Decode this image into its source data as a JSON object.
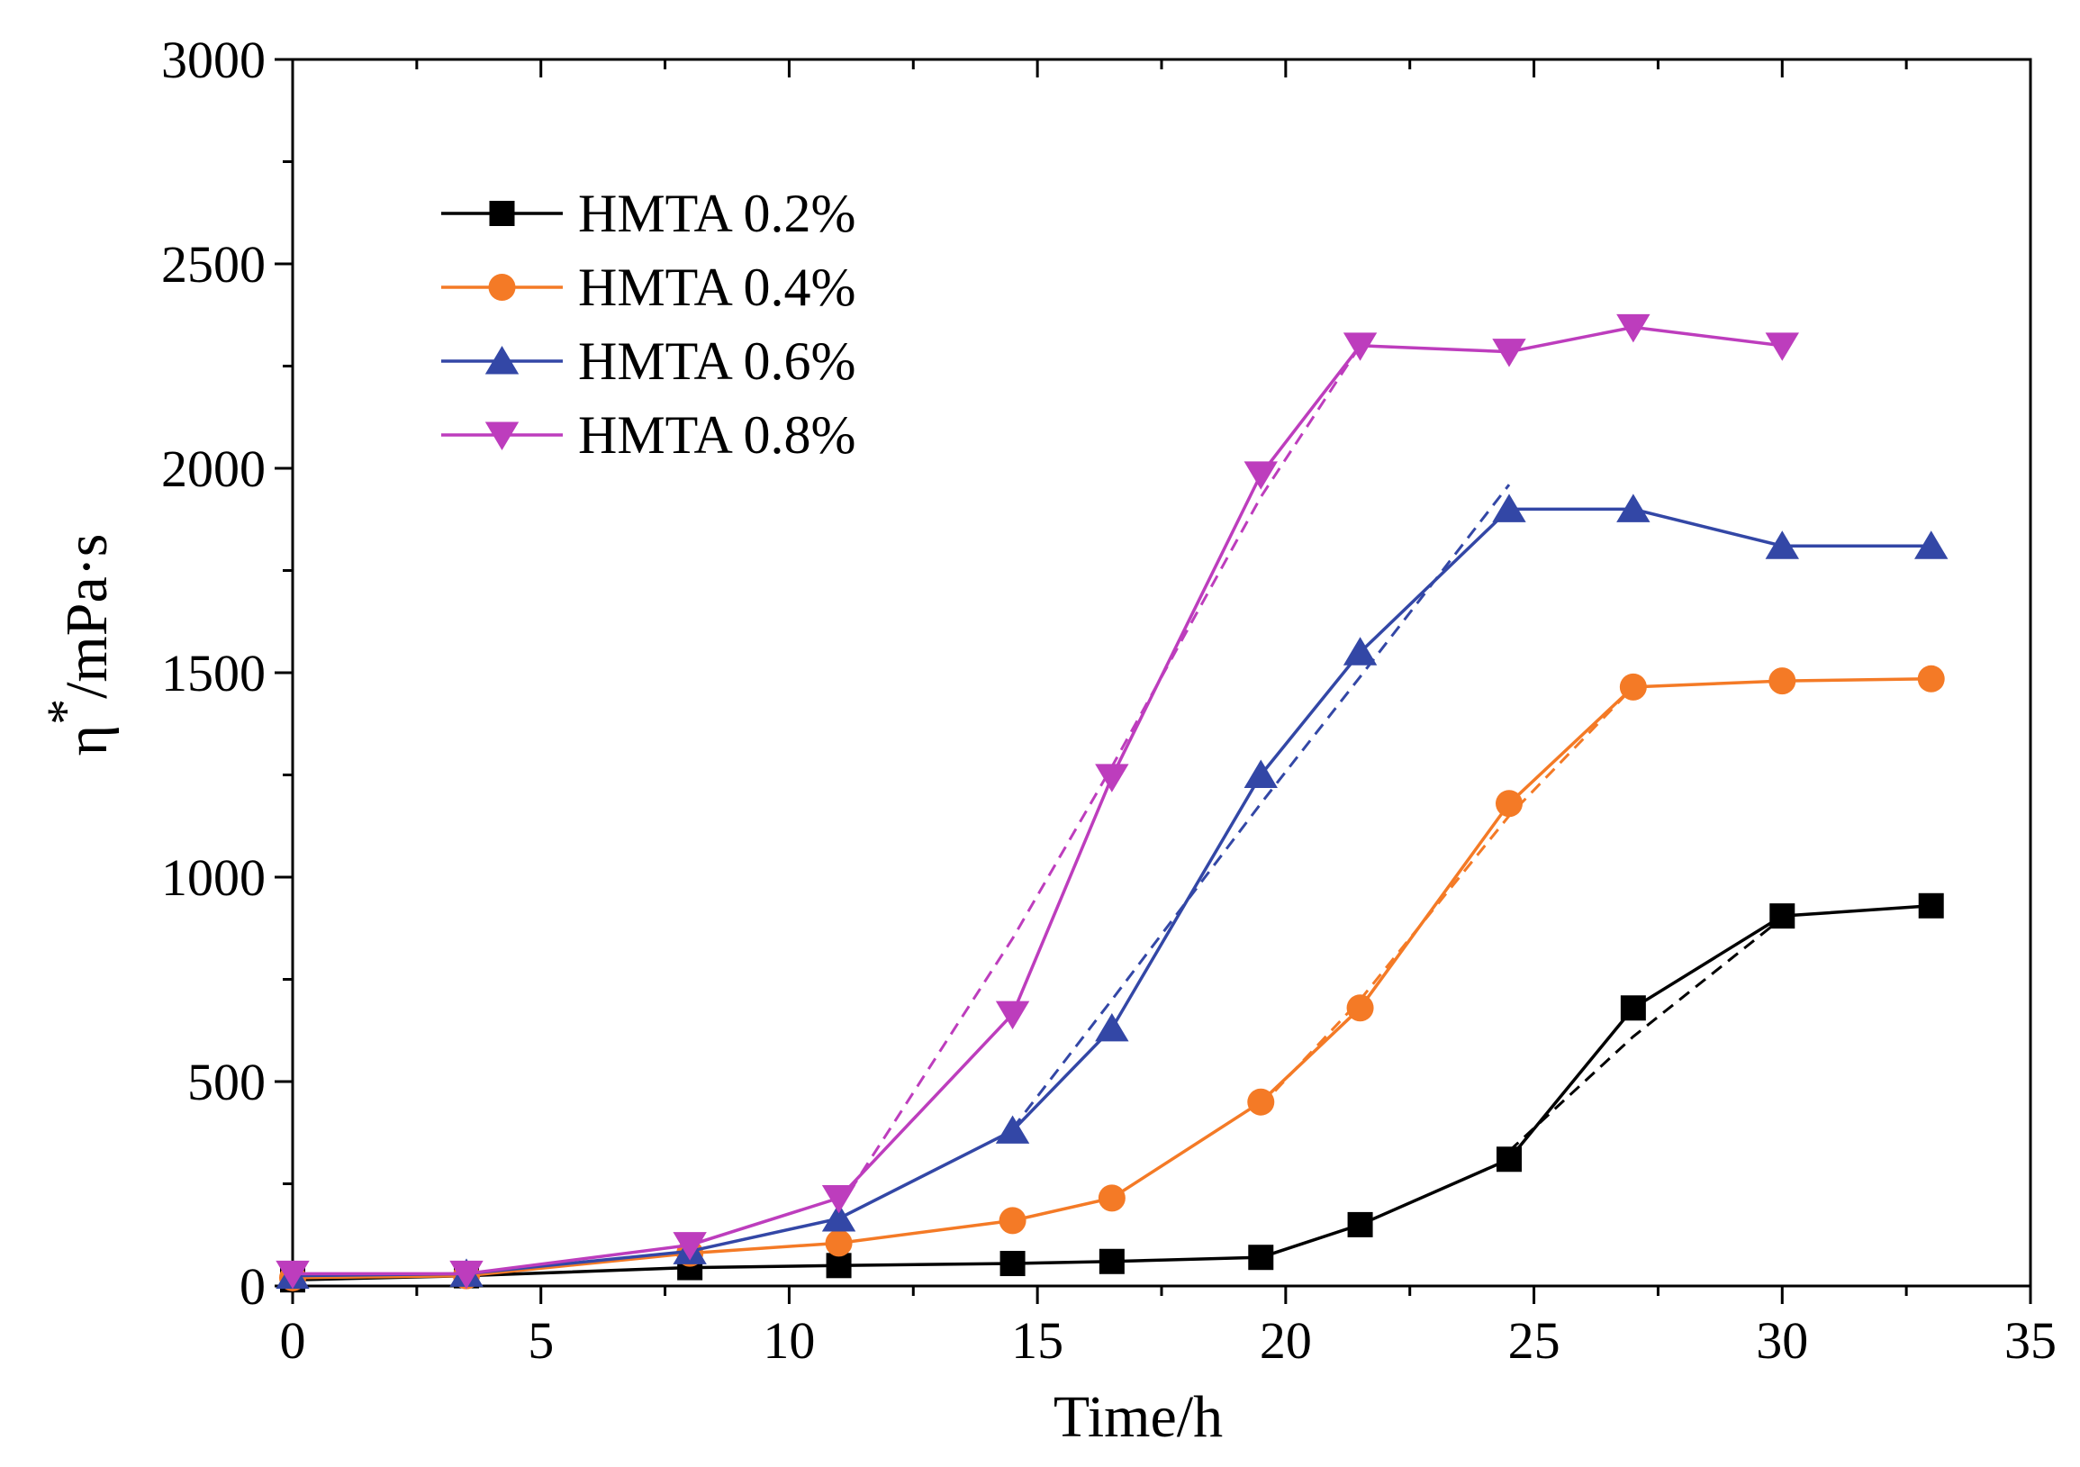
{
  "chart_data": {
    "type": "line",
    "title": "",
    "xlabel": "Time/h",
    "ylabel": "η*/mPa·s",
    "ylabel_parts": {
      "symbol": "η",
      "superscript": "*",
      "unit": "/mPa·s"
    },
    "xlim": [
      0,
      35
    ],
    "ylim": [
      0,
      3000
    ],
    "xticks": [
      0,
      5,
      10,
      15,
      20,
      25,
      30,
      35
    ],
    "yticks": [
      0,
      500,
      1000,
      1500,
      2000,
      2500,
      3000
    ],
    "grid": false,
    "legend_position": "top-left",
    "series": [
      {
        "name": "HMTA 0.2%",
        "color": "#000000",
        "marker": "square",
        "x": [
          0,
          3.5,
          8,
          11,
          14.5,
          16.5,
          19.5,
          21.5,
          24.5,
          27,
          30,
          33
        ],
        "y": [
          15,
          25,
          45,
          50,
          55,
          60,
          70,
          150,
          310,
          680,
          905,
          930
        ],
        "fit": {
          "x": [
            24.5,
            27,
            30
          ],
          "y": [
            330,
            610,
            900
          ]
        }
      },
      {
        "name": "HMTA 0.4%",
        "color": "#F47A26",
        "marker": "circle",
        "x": [
          0,
          3.5,
          8,
          11,
          14.5,
          16.5,
          19.5,
          21.5,
          24.5,
          27,
          30,
          33
        ],
        "y": [
          20,
          25,
          80,
          105,
          160,
          215,
          450,
          680,
          1180,
          1465,
          1480,
          1485
        ],
        "fit": {
          "x": [
            19.5,
            21.5,
            24.5,
            27
          ],
          "y": [
            440,
            700,
            1150,
            1465
          ]
        }
      },
      {
        "name": "HMTA 0.6%",
        "color": "#3347A6",
        "marker": "triangle-up",
        "x": [
          0,
          3.5,
          8,
          11,
          14.5,
          16.5,
          19.5,
          21.5,
          24.5,
          27,
          30,
          33
        ],
        "y": [
          25,
          30,
          85,
          165,
          380,
          630,
          1250,
          1550,
          1900,
          1900,
          1810,
          1810
        ],
        "fit": {
          "x": [
            14.5,
            16.5,
            19.5,
            21.5,
            24.5
          ],
          "y": [
            385,
            700,
            1180,
            1490,
            1960
          ]
        }
      },
      {
        "name": "HMTA 0.8%",
        "color": "#BD3DBD",
        "marker": "triangle-down",
        "x": [
          0,
          3.5,
          8,
          11,
          14.5,
          16.5,
          19.5,
          21.5,
          24.5,
          27,
          30
        ],
        "y": [
          30,
          30,
          100,
          215,
          665,
          1245,
          1985,
          2300,
          2285,
          2345,
          2300
        ],
        "fit": {
          "x": [
            11,
            14.5,
            16.5,
            19.5,
            21.5
          ],
          "y": [
            190,
            850,
            1270,
            1930,
            2300
          ]
        }
      }
    ]
  }
}
